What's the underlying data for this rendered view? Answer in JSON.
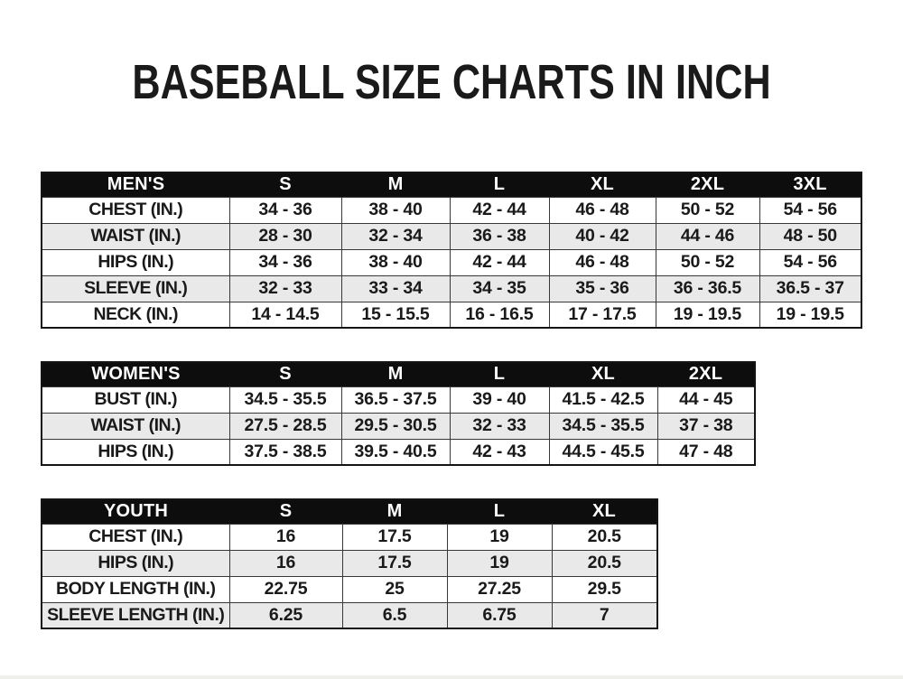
{
  "title": "BASEBALL SIZE CHARTS IN INCH",
  "chart_data": [
    {
      "type": "table",
      "name": "mens",
      "title": "MEN'S",
      "columns": [
        "MEN'S",
        "S",
        "M",
        "L",
        "XL",
        "2XL",
        "3XL"
      ],
      "rows": [
        [
          "CHEST (IN.)",
          "34 - 36",
          "38 - 40",
          "42 - 44",
          "46 - 48",
          "50 - 52",
          "54 - 56"
        ],
        [
          "WAIST (IN.)",
          "28 - 30",
          "32 - 34",
          "36 - 38",
          "40 - 42",
          "44 - 46",
          "48 - 50"
        ],
        [
          "HIPS (IN.)",
          "34 - 36",
          "38 - 40",
          "42 - 44",
          "46 - 48",
          "50 - 52",
          "54 - 56"
        ],
        [
          "SLEEVE (IN.)",
          "32 - 33",
          "33 - 34",
          "34 - 35",
          "35 - 36",
          "36 - 36.5",
          "36.5 - 37"
        ],
        [
          "NECK (IN.)",
          "14 - 14.5",
          "15 - 15.5",
          "16 - 16.5",
          "17 - 17.5",
          "19 - 19.5",
          "19 - 19.5"
        ]
      ]
    },
    {
      "type": "table",
      "name": "womens",
      "title": "WOMEN'S",
      "columns": [
        "WOMEN'S",
        "S",
        "M",
        "L",
        "XL",
        "2XL"
      ],
      "rows": [
        [
          "BUST (IN.)",
          "34.5 - 35.5",
          "36.5 - 37.5",
          "39 - 40",
          "41.5 - 42.5",
          "44 - 45"
        ],
        [
          "WAIST (IN.)",
          "27.5 - 28.5",
          "29.5 - 30.5",
          "32 - 33",
          "34.5 - 35.5",
          "37 - 38"
        ],
        [
          "HIPS (IN.)",
          "37.5 - 38.5",
          "39.5 - 40.5",
          "42 - 43",
          "44.5 - 45.5",
          "47 - 48"
        ]
      ]
    },
    {
      "type": "table",
      "name": "youth",
      "title": "YOUTH",
      "columns": [
        "YOUTH",
        "S",
        "M",
        "L",
        "XL"
      ],
      "rows": [
        [
          "CHEST (IN.)",
          "16",
          "17.5",
          "19",
          "20.5"
        ],
        [
          "HIPS (IN.)",
          "16",
          "17.5",
          "19",
          "20.5"
        ],
        [
          "BODY LENGTH (IN.)",
          "22.75",
          "25",
          "27.25",
          "29.5"
        ],
        [
          "SLEEVE LENGTH (IN.)",
          "6.25",
          "6.5",
          "6.75",
          "7"
        ]
      ]
    }
  ],
  "colors": {
    "page_bg": "#ffffff",
    "header_bg": "#0d0d0d",
    "header_text": "#ffffff",
    "row_bg": "#ffffff",
    "stripe_bg": "#e9e9e9",
    "border": "#383838",
    "text": "#1a1a1a"
  }
}
